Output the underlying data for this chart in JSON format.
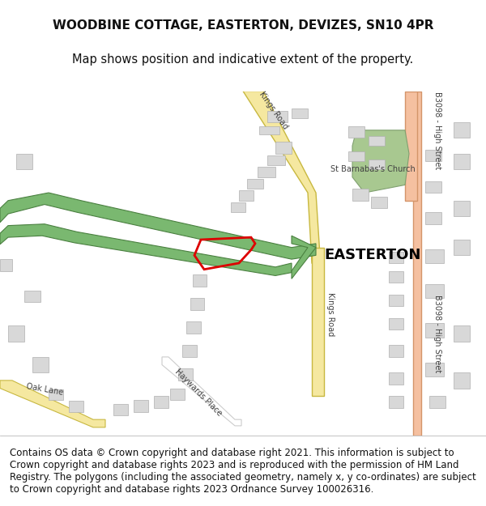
{
  "title_line1": "WOODBINE COTTAGE, EASTERTON, DEVIZES, SN10 4PR",
  "title_line2": "Map shows position and indicative extent of the property.",
  "copyright_text": "Contains OS data © Crown copyright and database right 2021. This information is subject to Crown copyright and database rights 2023 and is reproduced with the permission of HM Land Registry. The polygons (including the associated geometry, namely x, y co-ordinates) are subject to Crown copyright and database rights 2023 Ordnance Survey 100026316.",
  "background_color": "#f8f8f5",
  "map_area": [
    0,
    50,
    600,
    490
  ],
  "title_fontsize": 11,
  "copyright_fontsize": 8.5,
  "road_b3098_color": "#f5c0a0",
  "road_b3098_border": "#d4956a",
  "road_kings_road_color": "#f5e8a0",
  "road_kings_road_border": "#c8b840",
  "road_oak_lane_color": "#f5e8a0",
  "road_oak_lane_border": "#c8b840",
  "green_path_color": "#7ab870",
  "green_path_border": "#4a8040",
  "buildings_color": "#d8d8d8",
  "buildings_border": "#b0b0b0",
  "church_ground_color": "#a8c890",
  "plot_outline_color": "#dd0000",
  "text_color": "#404040",
  "easterton_label_color": "#000000",
  "road_label_color": "#404040"
}
